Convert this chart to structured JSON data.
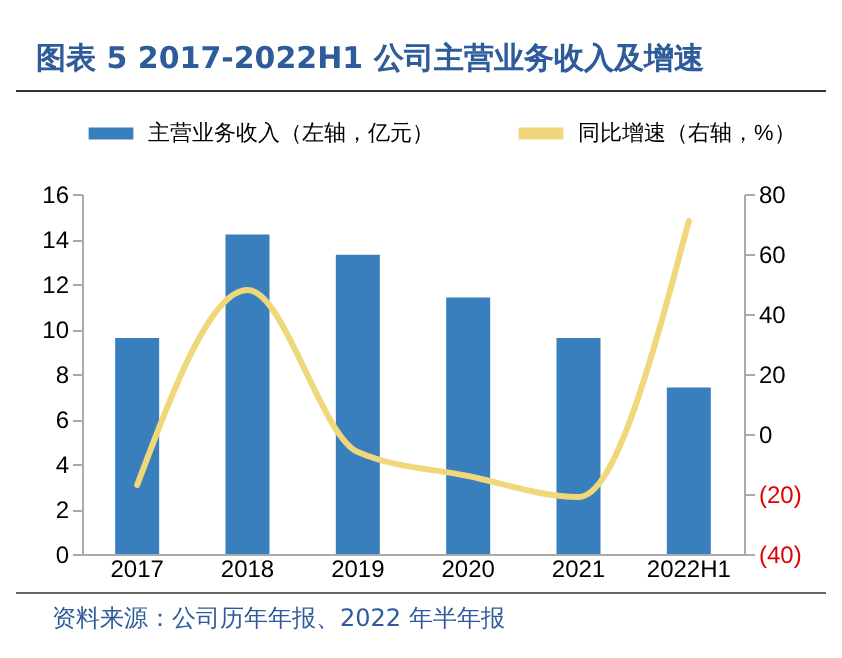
{
  "chart_data": {
    "type": "bar",
    "title": "图表 5 2017-2022H1 公司主营业务收入及增速",
    "categories": [
      "2017",
      "2018",
      "2019",
      "2020",
      "2021",
      "2022H1"
    ],
    "series": [
      {
        "name": "主营业务收入（左轴，亿元）",
        "color": "#3a7fbd",
        "values": [
          9.6,
          14.2,
          13.3,
          11.4,
          9.6,
          7.4
        ]
      },
      {
        "name": "同比增速（右轴，%）",
        "type": "line",
        "axis": "y2",
        "color": "#f0d77a",
        "values": [
          -17,
          48,
          -6,
          -14,
          -21,
          71
        ]
      }
    ],
    "ylim": [
      0,
      16
    ],
    "yticks": [
      0,
      2,
      4,
      6,
      8,
      10,
      12,
      14,
      16
    ],
    "y2lim": [
      -40,
      80
    ],
    "y2ticks": [
      {
        "value": -40,
        "label": "(40)"
      },
      {
        "value": -20,
        "label": "(20)"
      },
      0,
      20,
      40,
      60,
      80
    ],
    "grid": false,
    "legend": "top",
    "marker": "none",
    "line_style": "solid",
    "annotations": [
      "资料来源：公司历年年报、2022 年半年报"
    ]
  }
}
